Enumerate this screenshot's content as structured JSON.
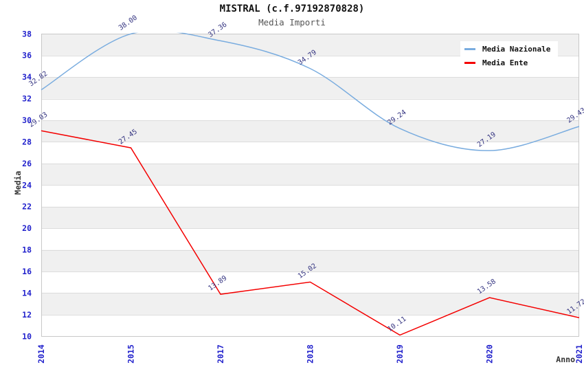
{
  "header": {
    "title": "MISTRAL (c.f.97192870828)",
    "subtitle": "Media Importi"
  },
  "axes": {
    "y_title": "Media",
    "x_title": "Anno"
  },
  "legend": {
    "items": [
      {
        "label": "Media Nazionale",
        "color": "#79ACDF"
      },
      {
        "label": "Media Ente",
        "color": "#F40000"
      }
    ]
  },
  "chart_data": {
    "type": "line",
    "title": "MISTRAL (c.f.97192870828)",
    "subtitle": "Media Importi",
    "xlabel": "Anno",
    "ylabel": "Media",
    "categories": [
      "2014",
      "2015",
      "2017",
      "2018",
      "2019",
      "2020",
      "2021"
    ],
    "series": [
      {
        "name": "Media Nazionale",
        "color": "#79ACDF",
        "smooth": true,
        "values": [
          32.82,
          38.0,
          37.36,
          34.79,
          29.24,
          27.19,
          29.43
        ],
        "labels": [
          "32.82",
          "38.00",
          "37.36",
          "34.79",
          "29.24",
          "27.19",
          "29.43"
        ]
      },
      {
        "name": "Media Ente",
        "color": "#F40000",
        "smooth": false,
        "values": [
          29.03,
          27.45,
          13.89,
          15.02,
          10.11,
          13.58,
          11.72
        ],
        "labels": [
          "29.03",
          "27.45",
          "13.89",
          "15.02",
          "10.11",
          "13.58",
          "11.72"
        ]
      }
    ],
    "ylim": [
      10,
      38
    ],
    "ytick_step": 2,
    "grid": true,
    "legend_position": "top-right",
    "style": {
      "band_fill": "#F0F0F0",
      "grid_color": "#DCDCDC",
      "border_color": "#C8C8C8",
      "tick_label_color": "#2222CC",
      "value_label_color": "#333380"
    }
  }
}
